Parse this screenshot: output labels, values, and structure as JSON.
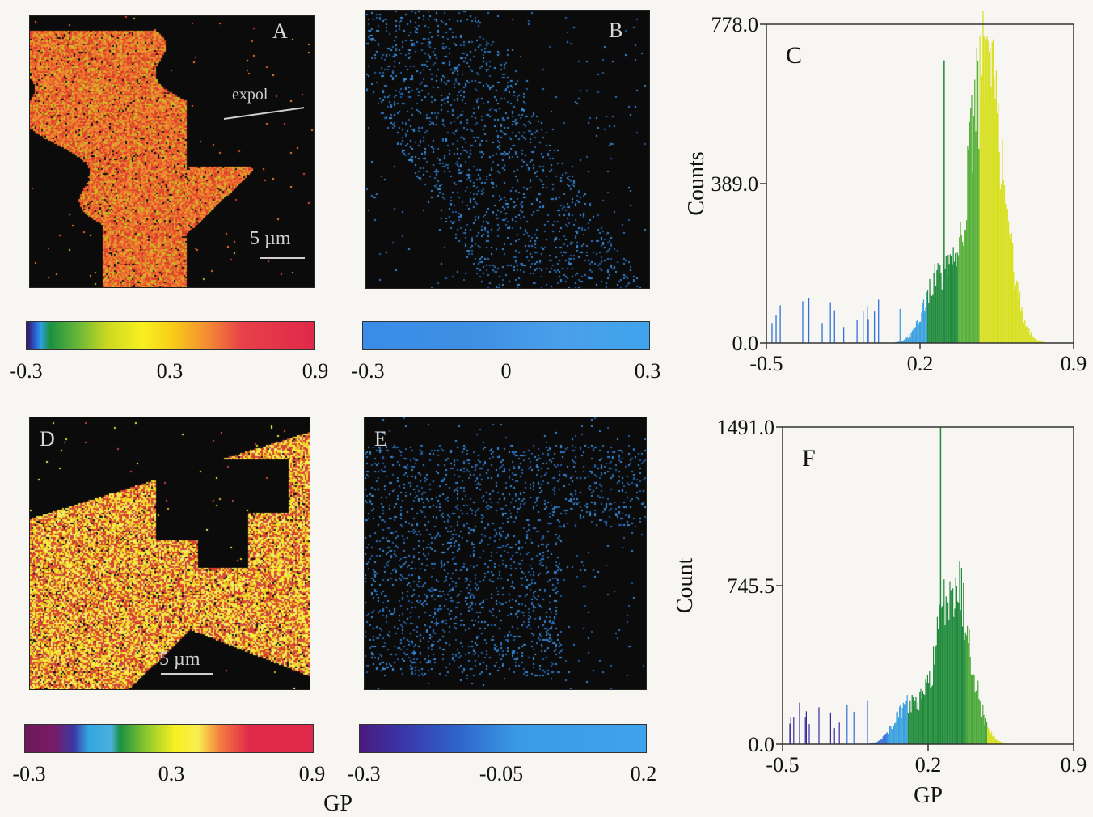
{
  "panels": {
    "A": {
      "letter": "A",
      "scalebar": "5 µm",
      "expol": "expol"
    },
    "B": {
      "letter": "B"
    },
    "D": {
      "letter": "D",
      "scalebar": "5 µm"
    },
    "E": {
      "letter": "E"
    }
  },
  "colorbars": [
    {
      "id": "cbar-a",
      "ticks": [
        "-0.3",
        "0.3",
        "0.9"
      ],
      "stops": [
        "#3a1060 0%",
        "#2a5fd0 3%",
        "#2f9fe0 5%",
        "#1a9040 8%",
        "#69b838 18%",
        "#ccd820 28%",
        "#f8f020 40%",
        "#f8d018 50%",
        "#f59030 62%",
        "#e8404a 75%",
        "#e0284a 100%"
      ]
    },
    {
      "id": "cbar-b",
      "ticks": [
        "-0.3",
        "0",
        "0.3"
      ],
      "stops": [
        "#3a8ce6 0%",
        "#3f8fe4 40%",
        "#4aa0ea 70%",
        "#3fa4ec 100%"
      ]
    },
    {
      "id": "cbar-d",
      "ticks": [
        "-0.3",
        "0.3",
        "0.9"
      ],
      "stops": [
        "#6a1a5a 0%",
        "#7a1a66 10%",
        "#3a38a8 17%",
        "#34a6e0 22%",
        "#4ab0dc 30%",
        "#1a9040 33%",
        "#8ac830 42%",
        "#f8f020 52%",
        "#f8f050 60%",
        "#f57a40 68%",
        "#e0284a 78%",
        "#e0284a 100%"
      ]
    },
    {
      "id": "cbar-e",
      "ticks": [
        "-0.3",
        "-0.05",
        "0.2"
      ],
      "stops": [
        "#4a1a80 0%",
        "#3a36a8 15%",
        "#2f66cc 35%",
        "#3a9be4 55%",
        "#3fa2ec 100%"
      ]
    }
  ],
  "gp_label": "GP",
  "chart_data": [
    {
      "type": "bar",
      "panel_label": "C",
      "ylabel": "Counts",
      "xlabel": "",
      "xlim": [
        -0.5,
        0.9
      ],
      "ylim": [
        0,
        778
      ],
      "xticks": [
        "-0.5",
        "0.2",
        "0.9"
      ],
      "yticks": [
        "0.0",
        "389.0",
        "778.0"
      ],
      "grid": false,
      "peak_x": 0.5,
      "peak_y": 690,
      "spike_x": 0.31,
      "spike_y": 690,
      "color_stops": [
        [
          -0.5,
          "#2f6fd8"
        ],
        [
          0.1,
          "#3aa0e0"
        ],
        [
          0.23,
          "#1e8a3a"
        ],
        [
          0.37,
          "#57b03a"
        ],
        [
          0.47,
          "#d8e020"
        ],
        [
          0.9,
          "#f8f020"
        ]
      ]
    },
    {
      "type": "bar",
      "panel_label": "F",
      "ylabel": "Count",
      "xlabel": "GP",
      "xlim": [
        -0.5,
        0.9
      ],
      "ylim": [
        0,
        1491
      ],
      "xticks": [
        "-0.5",
        "0.2",
        "0.9"
      ],
      "yticks": [
        "0.0",
        "745.5",
        "1491.0"
      ],
      "grid": false,
      "peak_x": 0.32,
      "peak_y": 790,
      "spike_x": 0.26,
      "spike_y": 1491,
      "color_stops": [
        [
          -0.5,
          "#3a2aa0"
        ],
        [
          -0.2,
          "#2f6fd8"
        ],
        [
          0.0,
          "#3aa0e0"
        ],
        [
          0.1,
          "#1e8a3a"
        ],
        [
          0.38,
          "#4aa838"
        ],
        [
          0.48,
          "#d8e020"
        ],
        [
          0.9,
          "#f8f020"
        ]
      ]
    }
  ]
}
